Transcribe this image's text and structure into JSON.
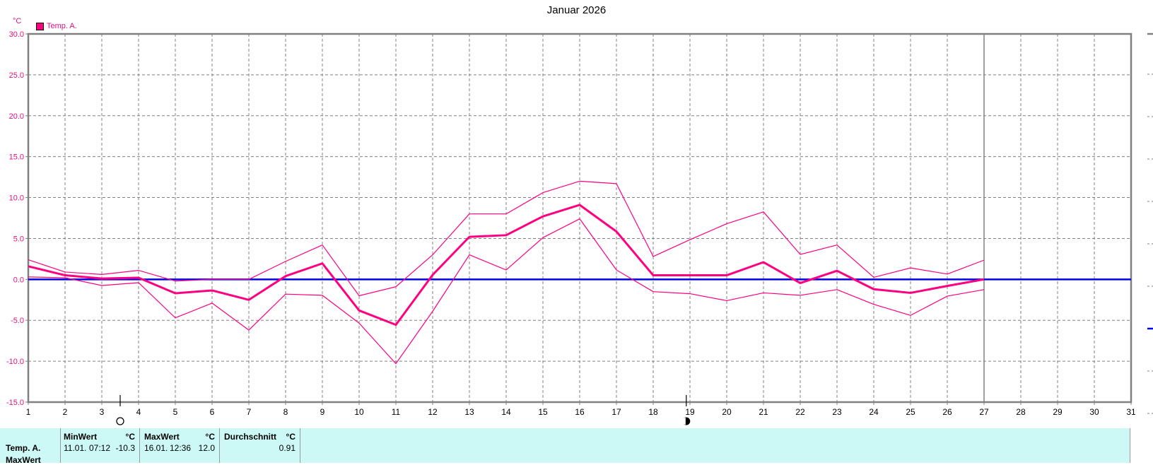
{
  "title": "Januar 2026",
  "unit_label": "°C",
  "legend": [
    {
      "label": "Temp. A.",
      "color": "#ff0080"
    }
  ],
  "colors": {
    "series": "#ff0080",
    "zero_line": "#0000e0",
    "axis": "#808080",
    "grid": "#808080",
    "ytick_text": "#e0127a",
    "stats_bg": "#ccf8f6"
  },
  "chart_data": {
    "type": "line",
    "title": "Januar 2026",
    "xlabel": "",
    "ylabel": "°C",
    "xlim": [
      1,
      31
    ],
    "ylim": [
      -15,
      30
    ],
    "y_ticks": [
      "30.0",
      "25.0",
      "20.0",
      "15.0",
      "10.0",
      "5.0",
      "0.0",
      "-5.0",
      "-10.0",
      "-15.0"
    ],
    "x_ticks": [
      "1",
      "2",
      "3",
      "4",
      "5",
      "6",
      "7",
      "8",
      "9",
      "10",
      "11",
      "12",
      "13",
      "14",
      "15",
      "16",
      "17",
      "18",
      "19",
      "20",
      "21",
      "22",
      "23",
      "24",
      "25",
      "26",
      "27",
      "28",
      "29",
      "30",
      "31"
    ],
    "grid": true,
    "legend_position": "top-left",
    "current_day_marker": 27,
    "moon_phases": [
      {
        "day": 3.5,
        "phase": "full-moon"
      },
      {
        "day": 18.9,
        "phase": "new-moon"
      }
    ],
    "x": [
      1,
      2,
      3,
      4,
      5,
      6,
      7,
      8,
      9,
      10,
      11,
      12,
      13,
      14,
      15,
      16,
      17,
      18,
      19,
      20,
      21,
      22,
      23,
      24,
      25,
      26,
      27
    ],
    "series": [
      {
        "name": "Temp. A. (Durchschnitt)",
        "values": [
          1.6,
          0.5,
          0.1,
          0.2,
          -1.7,
          -1.35,
          -2.5,
          0.4,
          1.95,
          -3.8,
          -5.55,
          0.55,
          5.2,
          5.4,
          7.7,
          9.1,
          5.85,
          0.5,
          0.5,
          0.5,
          2.1,
          -0.45,
          1.05,
          -1.2,
          -1.65,
          -0.8,
          0.0
        ]
      },
      {
        "name": "Temp. A. (Max)",
        "values": [
          2.4,
          0.9,
          0.6,
          1.1,
          -0.2,
          0.0,
          0.0,
          2.2,
          4.2,
          -2.0,
          -0.9,
          3.0,
          8.0,
          8.0,
          10.6,
          12.0,
          11.7,
          2.8,
          4.85,
          6.8,
          8.25,
          3.05,
          4.2,
          0.25,
          1.4,
          0.65,
          2.35
        ]
      },
      {
        "name": "Temp. A. (Min)",
        "values": [
          0.3,
          0.2,
          -0.75,
          -0.4,
          -4.7,
          -2.9,
          -6.2,
          -1.8,
          -1.95,
          -5.35,
          -10.3,
          -3.9,
          3.0,
          1.15,
          5.1,
          7.4,
          1.15,
          -1.5,
          -1.75,
          -2.6,
          -1.65,
          -1.95,
          -1.25,
          -3.05,
          -4.4,
          -2.05,
          -1.25
        ]
      }
    ],
    "reference_lines": [
      {
        "y": 0.0,
        "color": "#0000e0"
      }
    ]
  },
  "stats": {
    "row_label": "Temp. A.",
    "row_label_2": "MaxWert",
    "columns": [
      {
        "header": "MinWert",
        "unit": "°C",
        "date": "11.01.",
        "time": "07:12",
        "value": "-10.3"
      },
      {
        "header": "MaxWert",
        "unit": "°C",
        "date": "16.01.",
        "time": "12:36",
        "value": "12.0"
      },
      {
        "header": "Durchschnitt",
        "unit": "°C",
        "date": "",
        "time": "",
        "value": "0.91"
      }
    ]
  }
}
